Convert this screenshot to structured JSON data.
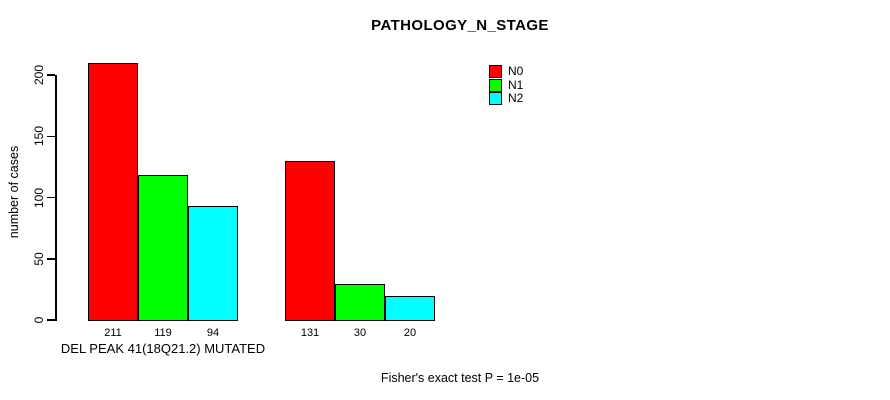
{
  "chart_data": {
    "type": "bar",
    "title": "PATHOLOGY_N_STAGE",
    "ylabel": "number of cases",
    "xlabel": "",
    "ylim": [
      0,
      200
    ],
    "yticks": [
      0,
      50,
      100,
      150,
      200
    ],
    "grid": false,
    "categories": [
      "DEL PEAK 41(18Q21.2) MUTATED",
      ""
    ],
    "series": [
      {
        "name": "N0",
        "color": "#FF0000",
        "values": [
          211,
          131
        ]
      },
      {
        "name": "N1",
        "color": "#00FF00",
        "values": [
          119,
          30
        ]
      },
      {
        "name": "N2",
        "color": "#00FFFF",
        "values": [
          94,
          20
        ]
      }
    ],
    "bar_value_labels": [
      [
        211,
        119,
        94
      ],
      [
        131,
        30,
        20
      ]
    ],
    "legend": {
      "position": "top-right",
      "entries": [
        "N0",
        "N1",
        "N2"
      ]
    },
    "footnote": "Fisher's exact test P = 1e-05",
    "colors": {
      "axis": "#000000",
      "background": "#FFFFFF"
    }
  }
}
